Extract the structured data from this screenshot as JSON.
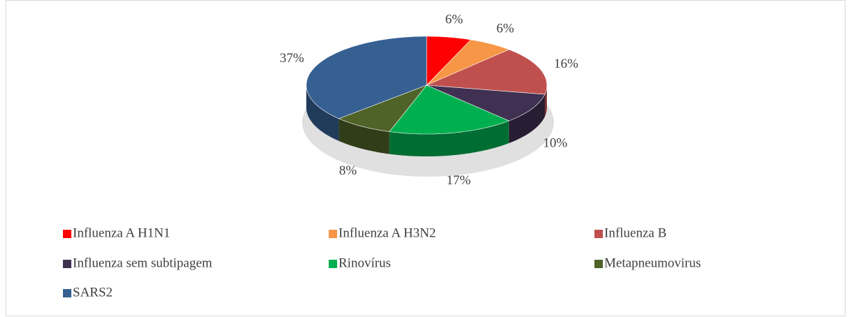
{
  "chart_data": {
    "type": "pie",
    "categories": [
      "Influenza A H1N1",
      "Influenza A H3N2",
      "Influenza B",
      "Influenza sem subtipagem",
      "Rinovírus",
      "Metapneumovirus",
      "SARS2"
    ],
    "values": [
      6,
      6,
      16,
      10,
      17,
      8,
      37
    ],
    "value_labels": [
      "6%",
      "6%",
      "16%",
      "10%",
      "17%",
      "8%",
      "37%"
    ],
    "colors": [
      "#ff0000",
      "#f79646",
      "#c0504d",
      "#403152",
      "#00b050",
      "#4f6228",
      "#366092"
    ]
  }
}
